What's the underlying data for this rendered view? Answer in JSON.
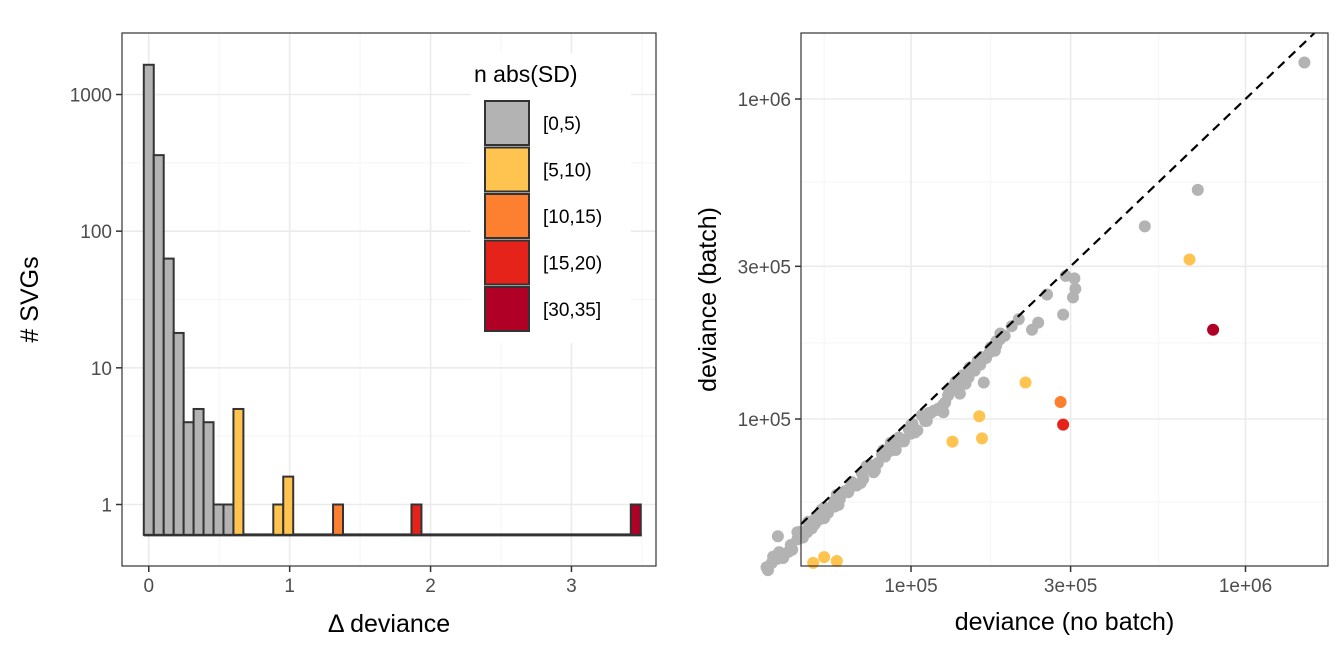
{
  "chart_data": [
    {
      "type": "bar",
      "subtype": "histogram",
      "xlabel": "Δ deviance",
      "ylabel": "# SVGs",
      "xlim": [
        -0.19,
        3.6
      ],
      "ylim_log10": [
        -0.45,
        3.45
      ],
      "yscale": "log10",
      "x_ticks": [
        0,
        1,
        2,
        3
      ],
      "y_ticks": [
        1,
        10,
        100,
        1000
      ],
      "y_tick_labels": [
        "1",
        "10",
        "100",
        "1000"
      ],
      "bin_width": 0.0707,
      "baseline_count": 0.6,
      "legend": {
        "title": "n abs(SD)",
        "position": "top-right",
        "entries": [
          {
            "label": "[0,5)",
            "color": "#b3b3b3"
          },
          {
            "label": "[5,10)",
            "color": "#fec44f"
          },
          {
            "label": "[10,15)",
            "color": "#fd7f30"
          },
          {
            "label": "[15,20)",
            "color": "#e5231b"
          },
          {
            "label": "[30,35]",
            "color": "#b10026"
          }
        ]
      },
      "bins": [
        {
          "x": 0.0,
          "count": 1650,
          "group": 0
        },
        {
          "x": 0.0707,
          "count": 360,
          "group": 0
        },
        {
          "x": 0.1414,
          "count": 63,
          "group": 0
        },
        {
          "x": 0.2121,
          "count": 18,
          "group": 0
        },
        {
          "x": 0.2828,
          "count": 4,
          "group": 0
        },
        {
          "x": 0.3535,
          "count": 5,
          "group": 0
        },
        {
          "x": 0.4242,
          "count": 4,
          "group": 0
        },
        {
          "x": 0.4949,
          "count": 1,
          "group": 0
        },
        {
          "x": 0.5656,
          "count": 1,
          "group": 0
        },
        {
          "x": 0.6363,
          "count": 5,
          "group": 1
        },
        {
          "x": 0.9191,
          "count": 1,
          "group": 1
        },
        {
          "x": 0.9898,
          "count": 1.6,
          "group": 1
        },
        {
          "x": 1.3433,
          "count": 1,
          "group": 2
        },
        {
          "x": 1.8999,
          "count": 1,
          "group": 3
        },
        {
          "x": 3.4564,
          "count": 1,
          "group": 4
        }
      ],
      "grid": true
    },
    {
      "type": "scatter",
      "xlabel": "deviance (no batch)",
      "ylabel": "deviance (batch)",
      "xscale": "log10",
      "yscale": "log10",
      "xlim": [
        28000,
        1750000
      ],
      "ylim": [
        28000,
        1750000
      ],
      "x_ticks": [
        100000,
        300000,
        1000000
      ],
      "x_tick_labels": [
        "1e+05",
        "3e+05",
        "1e+06"
      ],
      "y_ticks": [
        100000,
        300000,
        1000000
      ],
      "y_tick_labels": [
        "1e+05",
        "3e+05",
        "1e+06"
      ],
      "reference_line": "y = x (dashed)",
      "grid": true,
      "points": [
        {
          "x": 1500000,
          "y": 1300000,
          "group": 0
        },
        {
          "x": 720000,
          "y": 520000,
          "group": 0
        },
        {
          "x": 500000,
          "y": 400000,
          "group": 0
        },
        {
          "x": 680000,
          "y": 315000,
          "group": 1
        },
        {
          "x": 800000,
          "y": 190000,
          "group": 4
        },
        {
          "x": 220000,
          "y": 130000,
          "group": 1
        },
        {
          "x": 280000,
          "y": 113000,
          "group": 2
        },
        {
          "x": 285000,
          "y": 96000,
          "group": 3
        },
        {
          "x": 160000,
          "y": 102000,
          "group": 1
        },
        {
          "x": 163000,
          "y": 87000,
          "group": 1
        },
        {
          "x": 133000,
          "y": 85000,
          "group": 1
        },
        {
          "x": 55000,
          "y": 37000,
          "group": 1
        },
        {
          "x": 51000,
          "y": 35500,
          "group": 1
        },
        {
          "x": 60000,
          "y": 36000,
          "group": 1
        },
        {
          "x": 40000,
          "y": 43000,
          "group": 0
        },
        {
          "x": 47000,
          "y": 44500,
          "group": 0
        },
        {
          "x": 55000,
          "y": 49000,
          "group": 0
        },
        {
          "x": 56000,
          "y": 52000,
          "group": 0
        },
        {
          "x": 60000,
          "y": 58000,
          "group": 0
        },
        {
          "x": 72000,
          "y": 65000,
          "group": 0
        },
        {
          "x": 78000,
          "y": 69000,
          "group": 0
        },
        {
          "x": 90000,
          "y": 80000,
          "group": 0
        },
        {
          "x": 100000,
          "y": 90000,
          "group": 0
        },
        {
          "x": 110000,
          "y": 100000,
          "group": 0
        },
        {
          "x": 125000,
          "y": 105000,
          "group": 0
        },
        {
          "x": 140000,
          "y": 120000,
          "group": 0
        },
        {
          "x": 165000,
          "y": 130000,
          "group": 0
        },
        {
          "x": 180000,
          "y": 175000,
          "group": 0
        },
        {
          "x": 200000,
          "y": 195000,
          "group": 0
        },
        {
          "x": 230000,
          "y": 190000,
          "group": 0
        },
        {
          "x": 255000,
          "y": 245000,
          "group": 0
        },
        {
          "x": 290000,
          "y": 280000,
          "group": 0
        },
        {
          "x": 308000,
          "y": 275000,
          "group": 0
        },
        {
          "x": 310000,
          "y": 255000,
          "group": 0
        },
        {
          "x": 305000,
          "y": 240000,
          "group": 0
        },
        {
          "x": 285000,
          "y": 212000,
          "group": 0
        },
        {
          "x": 240000,
          "y": 200000,
          "group": 0
        },
        {
          "x": 210000,
          "y": 205000,
          "group": 0
        },
        {
          "x": 185000,
          "y": 185000,
          "group": 0
        },
        {
          "x": 150000,
          "y": 145000,
          "group": 0
        }
      ],
      "point_band": {
        "x_from": 37000,
        "x_to": 190000,
        "ratio_min": 0.88,
        "ratio_max": 0.97,
        "group": 0
      }
    }
  ],
  "colors": {
    "grey": "#b3b3b3",
    "yellow": "#fec44f",
    "orange": "#fd7f30",
    "red": "#e5231b",
    "darkred": "#b10026",
    "panel_border": "#333333",
    "grid_major": "#ebebeb",
    "grid_minor": "#f5f5f5"
  }
}
